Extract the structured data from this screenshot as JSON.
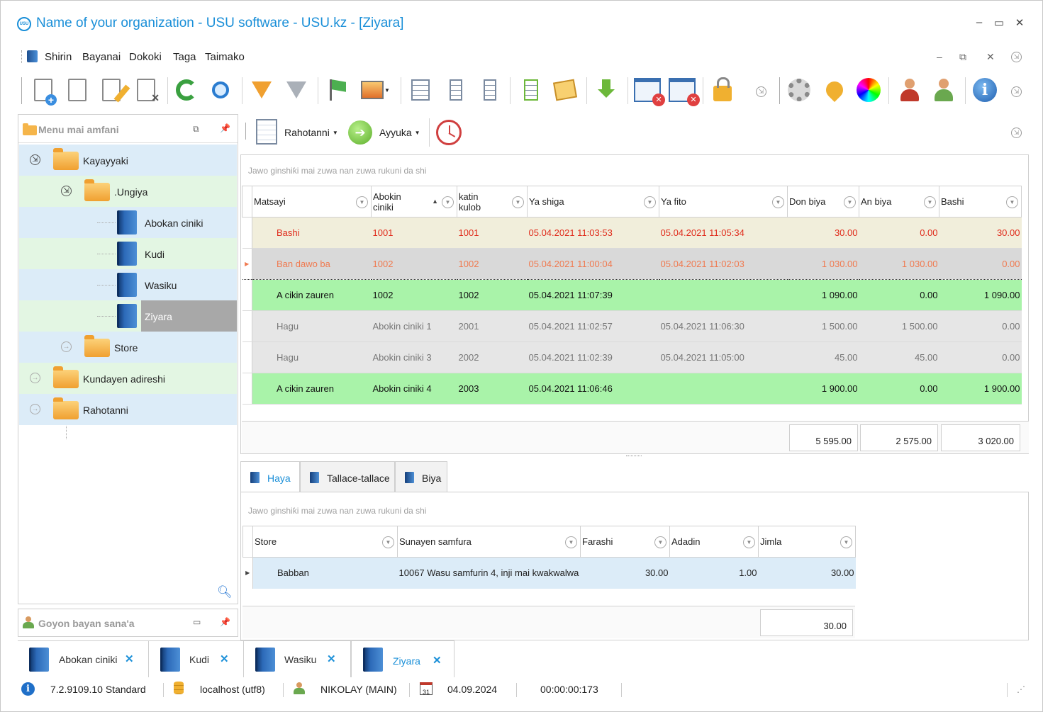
{
  "window": {
    "title": "Name of your organization - USU software - USU.kz - [Ziyara]",
    "logo_text": "USU",
    "minimize": "–",
    "maximize": "▭",
    "close": "✕"
  },
  "menu": {
    "items": [
      "Shirin",
      "Bayanai",
      "Dokoki",
      "Taga",
      "Taimako"
    ]
  },
  "toolbar_icons": [
    "add-doc-icon",
    "copy-doc-icon",
    "edit-doc-icon",
    "delete-doc-icon",
    "refresh-icon",
    "search-icon",
    "filter-icon",
    "filter-settings-icon",
    "flag-icon",
    "image-icon",
    "add-row-icon",
    "tree-collapse-icon",
    "tree-expand-icon",
    "insert-column-icon",
    "notes-icon",
    "download-icon",
    "close-window-icon",
    "close-all-windows-icon",
    "lock-icon",
    "gear-icon",
    "location-pin-icon",
    "color-wheel-icon",
    "user-settings-icon",
    "users-icon",
    "info-icon"
  ],
  "left_panel": {
    "title": "Menu mai amfani",
    "tree": [
      {
        "label": "Kayayyaki",
        "type": "folder"
      },
      {
        "label": ".Ungiya",
        "type": "folder"
      },
      {
        "label": "Abokan ciniki",
        "type": "book"
      },
      {
        "label": "Kudi",
        "type": "book"
      },
      {
        "label": "Wasiku",
        "type": "book"
      },
      {
        "label": "Ziyara",
        "type": "book"
      },
      {
        "label": "Store",
        "type": "folder"
      },
      {
        "label": "Kundayen adireshi",
        "type": "folder"
      },
      {
        "label": "Rahotanni",
        "type": "folder"
      }
    ]
  },
  "left_panel2": {
    "title": "Goyon bayan sana'a"
  },
  "subtoolbar": {
    "reports_label": "Rahotanni",
    "actions_label": "Ayyuka"
  },
  "grid1": {
    "hint": "Jawo ginshiƙi mai zuwa nan zuwa rukuni da shi",
    "columns": [
      "Matsayi",
      "Abokin ciniki",
      "katin kulob",
      "Ya shiga",
      "Ya fito",
      "Don biya",
      "An biya",
      "Bashi"
    ],
    "rows": [
      [
        "Bashi",
        "1001",
        "1001",
        "05.04.2021 11:03:53",
        "05.04.2021 11:05:34",
        "30.00",
        "0.00",
        "30.00"
      ],
      [
        "Ban dawo ba",
        "1002",
        "1002",
        "05.04.2021 11:00:04",
        "05.04.2021 11:02:03",
        "1 030.00",
        "1 030.00",
        "0.00"
      ],
      [
        "A cikin zauren",
        "1002",
        "1002",
        "05.04.2021 11:07:39",
        "",
        "1 090.00",
        "0.00",
        "1 090.00"
      ],
      [
        "Hagu",
        "Abokin ciniki 1",
        "2001",
        "05.04.2021 11:02:57",
        "05.04.2021 11:06:30",
        "1 500.00",
        "1 500.00",
        "0.00"
      ],
      [
        "Hagu",
        "Abokin ciniki 3",
        "2002",
        "05.04.2021 11:02:39",
        "05.04.2021 11:05:00",
        "45.00",
        "45.00",
        "0.00"
      ],
      [
        "A cikin zauren",
        "Abokin ciniki 4",
        "2003",
        "05.04.2021 11:06:46",
        "",
        "1 900.00",
        "0.00",
        "1 900.00"
      ]
    ],
    "totals": [
      "5 595.00",
      "2 575.00",
      "3 020.00"
    ]
  },
  "tabs": [
    "Haya",
    "Tallace-tallace",
    "Biya"
  ],
  "grid2": {
    "hint": "Jawo ginshiƙi mai zuwa nan zuwa rukuni da shi",
    "columns": [
      "Store",
      "Sunayen samfura",
      "Farashi",
      "Adadin",
      "Jimla"
    ],
    "rows": [
      [
        "Babban",
        "10067 Wasu samfurin 4, inji mai kwakwalwa",
        "30.00",
        "1.00",
        "30.00"
      ]
    ],
    "total": "30.00"
  },
  "bottom_tabs": [
    "Abokan ciniki",
    "Kudi",
    "Wasiku",
    "Ziyara"
  ],
  "status": {
    "version": "7.2.9109.10 Standard",
    "db": "localhost (utf8)",
    "user": "NIKOLAY (MAIN)",
    "calendar_day": "31",
    "date": "04.09.2024",
    "timer": "00:00:00:173"
  },
  "colors": {
    "accent": "#1a8fd8",
    "row_yellow": "#f1eedb",
    "row_green": "#a9f3a9",
    "row_gray": "#e6e6e6",
    "tree_blue": "#dcecf8",
    "tree_green": "#e3f6e3",
    "red_text": "#e02a1a"
  }
}
